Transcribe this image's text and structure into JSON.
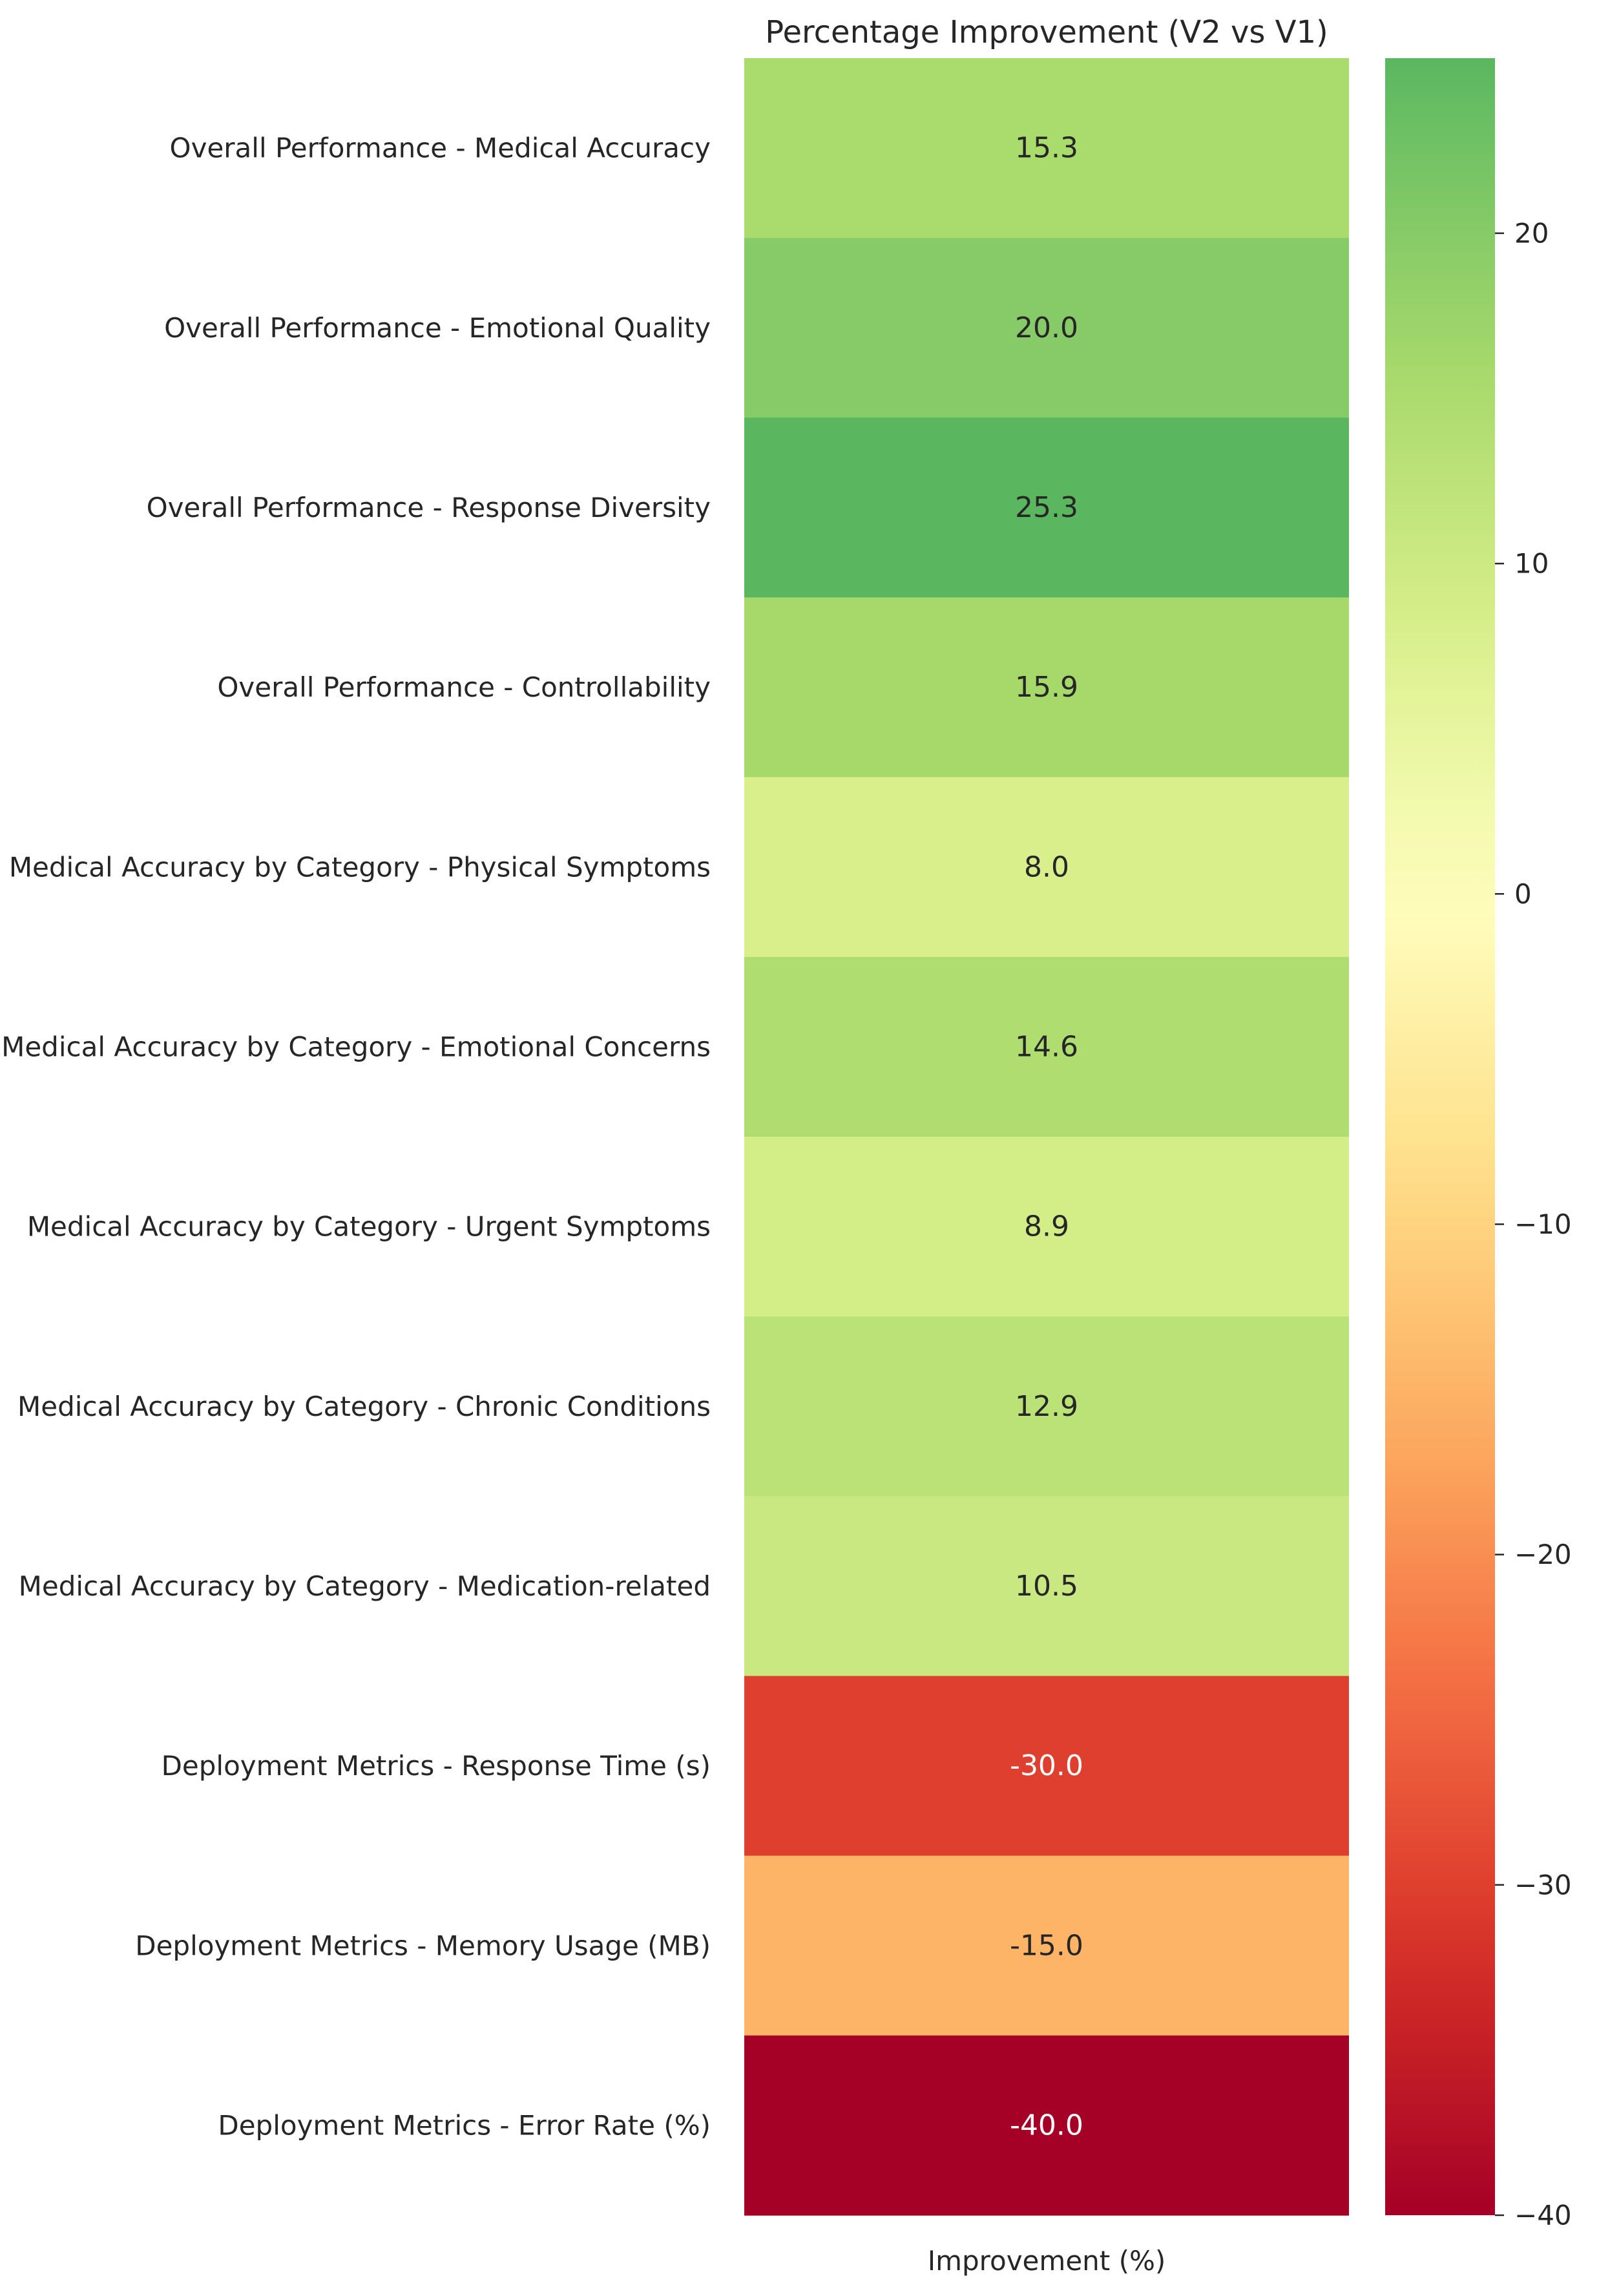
{
  "chart_data": {
    "type": "heatmap",
    "title": "Percentage Improvement (V2 vs V1)",
    "xlabel": "Improvement (%)",
    "ylabel": "",
    "columns": [
      ""
    ],
    "rows": [
      "Overall Performance - Medical Accuracy",
      "Overall Performance - Emotional Quality",
      "Overall Performance - Response Diversity",
      "Overall Performance - Controllability",
      "Medical Accuracy by Category - Physical Symptoms",
      "Medical Accuracy by Category - Emotional Concerns",
      "Medical Accuracy by Category - Urgent Symptoms",
      "Medical Accuracy by Category - Chronic Conditions",
      "Medical Accuracy by Category - Medication-related",
      "Deployment Metrics - Response Time (s)",
      "Deployment Metrics - Memory Usage (MB)",
      "Deployment Metrics - Error Rate (%)"
    ],
    "values": [
      15.3,
      20.0,
      25.3,
      15.9,
      8.0,
      14.6,
      8.9,
      12.9,
      10.5,
      -30.0,
      -15.0,
      -40.0
    ],
    "value_labels": [
      "15.3",
      "20.0",
      "25.3",
      "15.9",
      "8.0",
      "14.6",
      "8.9",
      "12.9",
      "10.5",
      "-30.0",
      "-15.0",
      "-40.0"
    ],
    "colormap": "RdYlGn",
    "colorbar": {
      "range": [
        -40,
        25.3
      ],
      "ticks": [
        20,
        10,
        0,
        -10,
        -20,
        -30,
        -40
      ],
      "tick_labels": [
        "20",
        "10",
        "0",
        "−10",
        "−20",
        "−30",
        "−40"
      ]
    }
  }
}
